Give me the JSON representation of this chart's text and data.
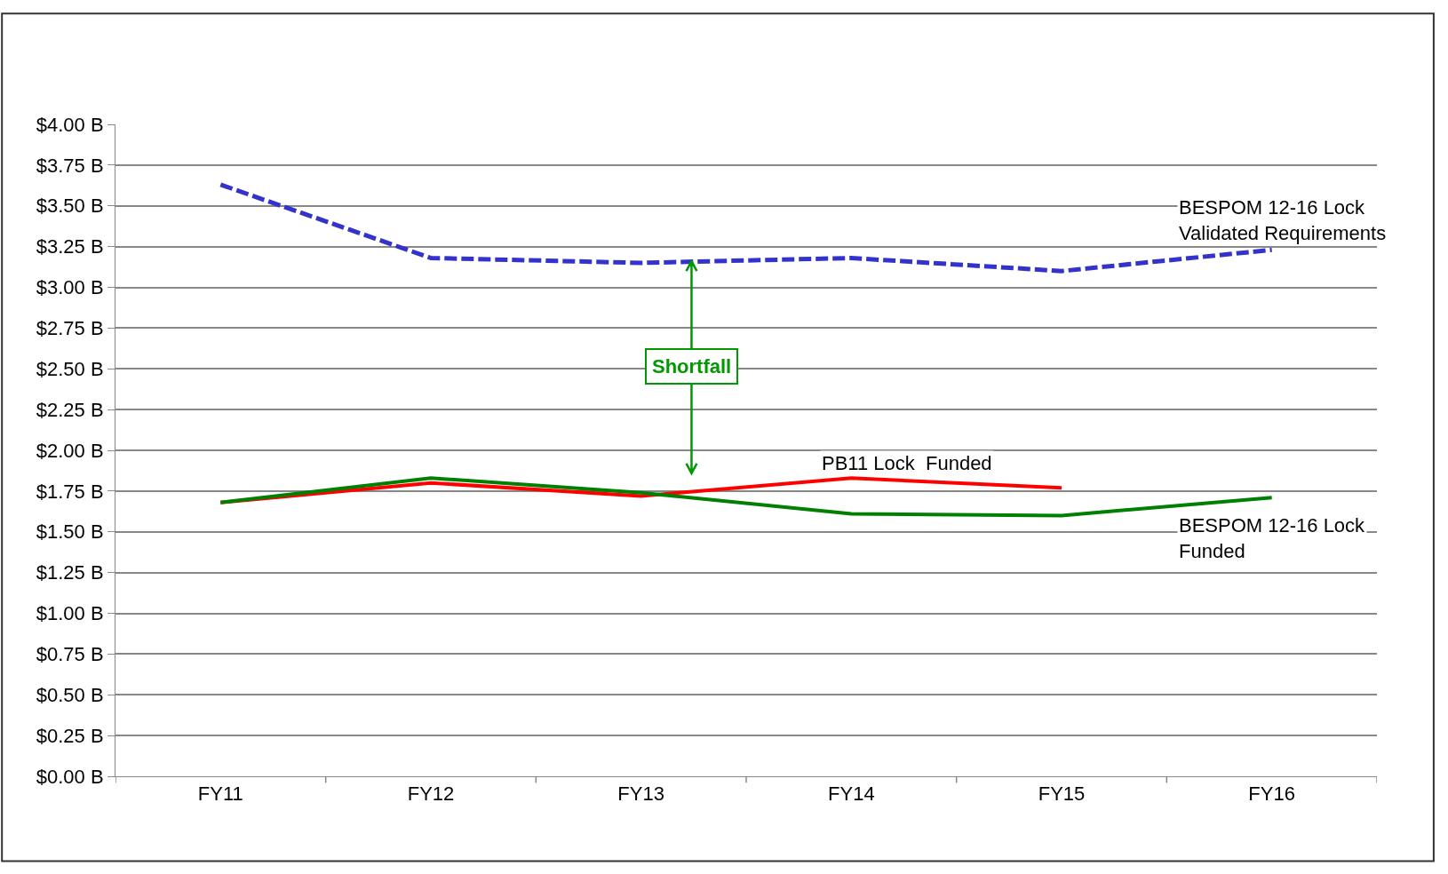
{
  "chart_data": {
    "type": "line",
    "categories": [
      "FY11",
      "FY12",
      "FY13",
      "FY14",
      "FY15",
      "FY16"
    ],
    "series": [
      {
        "name": "BESPOM 12-16 Lock\nValidated Requirements",
        "color": "#3333cc",
        "line_style": "dashed",
        "values": [
          3.63,
          3.18,
          3.15,
          3.18,
          3.1,
          3.23
        ]
      },
      {
        "name": "PB11 Lock  Funded",
        "color": "#ff0000",
        "line_style": "solid",
        "values": [
          1.68,
          1.8,
          1.72,
          1.83,
          1.77,
          null
        ]
      },
      {
        "name": "BESPOM 12-16 Lock\nFunded",
        "color": "#008000",
        "line_style": "solid",
        "values": [
          1.68,
          1.83,
          1.74,
          1.61,
          1.6,
          1.71
        ]
      }
    ],
    "ylim": [
      0,
      4
    ],
    "yticks": [
      {
        "value": 0,
        "label": "$0.00 B"
      },
      {
        "value": 0.25,
        "label": "$0.25 B"
      },
      {
        "value": 0.5,
        "label": "$0.50 B"
      },
      {
        "value": 0.75,
        "label": "$0.75 B"
      },
      {
        "value": 1,
        "label": "$1.00 B"
      },
      {
        "value": 1.25,
        "label": "$1.25 B"
      },
      {
        "value": 1.5,
        "label": "$1.50 B"
      },
      {
        "value": 1.75,
        "label": "$1.75 B"
      },
      {
        "value": 2,
        "label": "$2.00 B"
      },
      {
        "value": 2.25,
        "label": "$2.25 B"
      },
      {
        "value": 2.5,
        "label": "$2.50 B"
      },
      {
        "value": 2.75,
        "label": "$2.75 B"
      },
      {
        "value": 3,
        "label": "$3.00 B"
      },
      {
        "value": 3.25,
        "label": "$3.25 B"
      },
      {
        "value": 3.5,
        "label": "$3.50 B"
      },
      {
        "value": 3.75,
        "label": "$3.75 B"
      },
      {
        "value": 4,
        "label": "$4.00 B"
      }
    ],
    "grid": "y",
    "legend": false,
    "marker": "none",
    "annotations": [
      {
        "text": "Shortfall",
        "y": 3.16
      }
    ]
  }
}
